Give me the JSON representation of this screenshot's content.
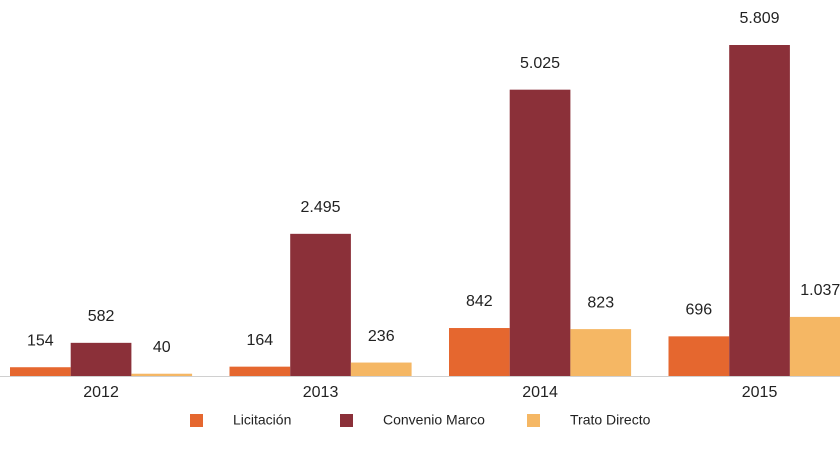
{
  "chart_data": {
    "type": "bar",
    "categories": [
      "2012",
      "2013",
      "2014",
      "2015"
    ],
    "series": [
      {
        "name": "Licitación",
        "color": "#e5672f",
        "values": [
          154,
          164,
          842,
          696
        ],
        "value_labels": [
          "154",
          "164",
          "842",
          "696"
        ]
      },
      {
        "name": "Convenio Marco",
        "color": "#8b3039",
        "values": [
          582,
          2495,
          5025,
          5809
        ],
        "value_labels": [
          "582",
          "2.495",
          "5.025",
          "5.809"
        ]
      },
      {
        "name": "Trato Directo",
        "color": "#f5b764",
        "values": [
          40,
          236,
          823,
          1037
        ],
        "value_labels": [
          "40",
          "236",
          "823",
          "1.037"
        ]
      }
    ]
  }
}
